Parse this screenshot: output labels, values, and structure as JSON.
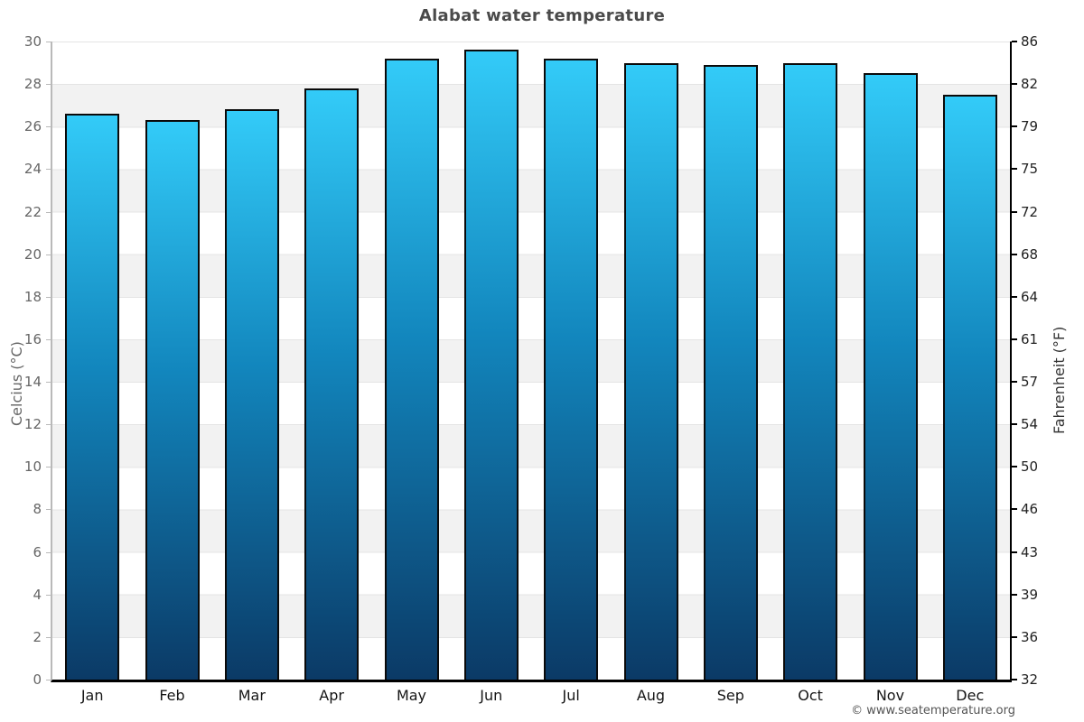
{
  "title": "Alabat water temperature",
  "footer": {
    "copyright": "© www.seatemperature.org"
  },
  "chart_data": {
    "type": "bar",
    "title": "Alabat water temperature",
    "categories": [
      "Jan",
      "Feb",
      "Mar",
      "Apr",
      "May",
      "Jun",
      "Jul",
      "Aug",
      "Sep",
      "Oct",
      "Nov",
      "Dec"
    ],
    "values": [
      26.6,
      26.3,
      26.8,
      27.8,
      29.2,
      29.6,
      29.2,
      29.0,
      28.9,
      29.0,
      28.5,
      27.5
    ],
    "xlabel": "",
    "ylabel_left": "Celcius (°C)",
    "ylabel_right": "Fahrenheit (°F)",
    "ylim": [
      0,
      30
    ],
    "yticks_celsius": [
      30,
      28,
      26,
      24,
      22,
      20,
      18,
      16,
      14,
      12,
      10,
      8,
      6,
      4,
      2,
      0
    ],
    "yticks_fahrenheit": [
      86,
      82,
      79,
      75,
      72,
      68,
      64,
      61,
      57,
      54,
      50,
      46,
      43,
      39,
      36,
      32
    ],
    "grid": "horizontal-bands-every-2C",
    "legend": "none",
    "colors": {
      "bar_top": "#33cbf8",
      "bar_bottom": "#0b3a66",
      "band_gray": "#f2f2f2",
      "gridline": "#e4e4e4",
      "left_axis": "#b9b9b9",
      "right_axis": "#000000"
    }
  }
}
